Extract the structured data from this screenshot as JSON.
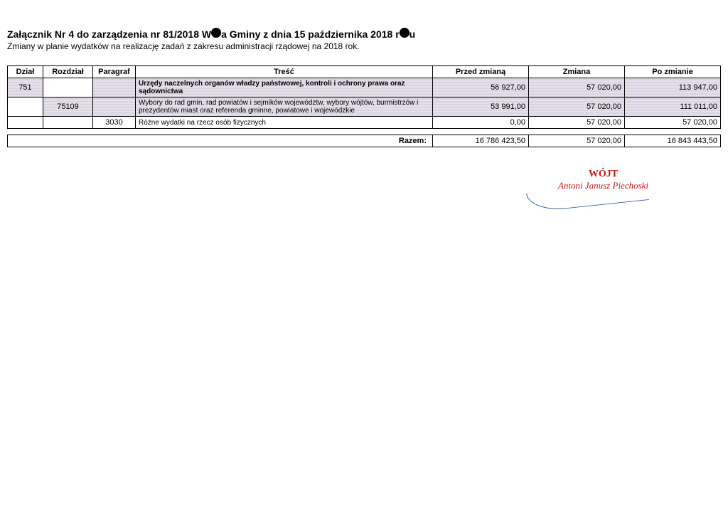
{
  "header": {
    "title_pre": "Załącznik Nr 4 do zarządzenia nr 81/2018 W",
    "title_mid": "a Gminy z dnia 15 października 2018 r",
    "title_post": "u",
    "subtitle": "Zmiany w planie wydatków na realizację zadań z zakresu administracji rządowej na 2018 rok."
  },
  "table": {
    "columns": [
      "Dział",
      "Rozdział",
      "Paragraf",
      "Treść",
      "Przed zmianą",
      "Zmiana",
      "Po zmianie"
    ],
    "rows": [
      {
        "shaded": true,
        "bold": true,
        "dzial": "751",
        "rozdzial": "",
        "paragraf": "",
        "tresc": "Urzędy naczelnych organów władzy państwowej, kontroli i ochrony prawa oraz sądownictwa",
        "przed": "56 927,00",
        "zmiana": "57 020,00",
        "po": "113 947,00"
      },
      {
        "shaded": true,
        "bold": false,
        "dzial": "",
        "rozdzial": "75109",
        "paragraf": "",
        "tresc": "Wybory do rad gmin, rad powiatów i sejmików województw, wybory wójtów, burmistrzów i prezydentów miast oraz referenda gminne, powiatowe i wojewódzkie",
        "przed": "53 991,00",
        "zmiana": "57 020,00",
        "po": "111 011,00"
      },
      {
        "shaded": false,
        "bold": false,
        "dzial": "",
        "rozdzial": "",
        "paragraf": "3030",
        "tresc": "Różne wydatki na rzecz osób fizycznych",
        "przed": "0,00",
        "zmiana": "57 020,00",
        "po": "57 020,00"
      }
    ],
    "totals": {
      "label": "Razem:",
      "przed": "16 786 423,50",
      "zmiana": "57 020,00",
      "po": "16 843 443,50"
    }
  },
  "signature": {
    "title": "WÓJT",
    "name": "Antoni Janusz Piechoski"
  }
}
